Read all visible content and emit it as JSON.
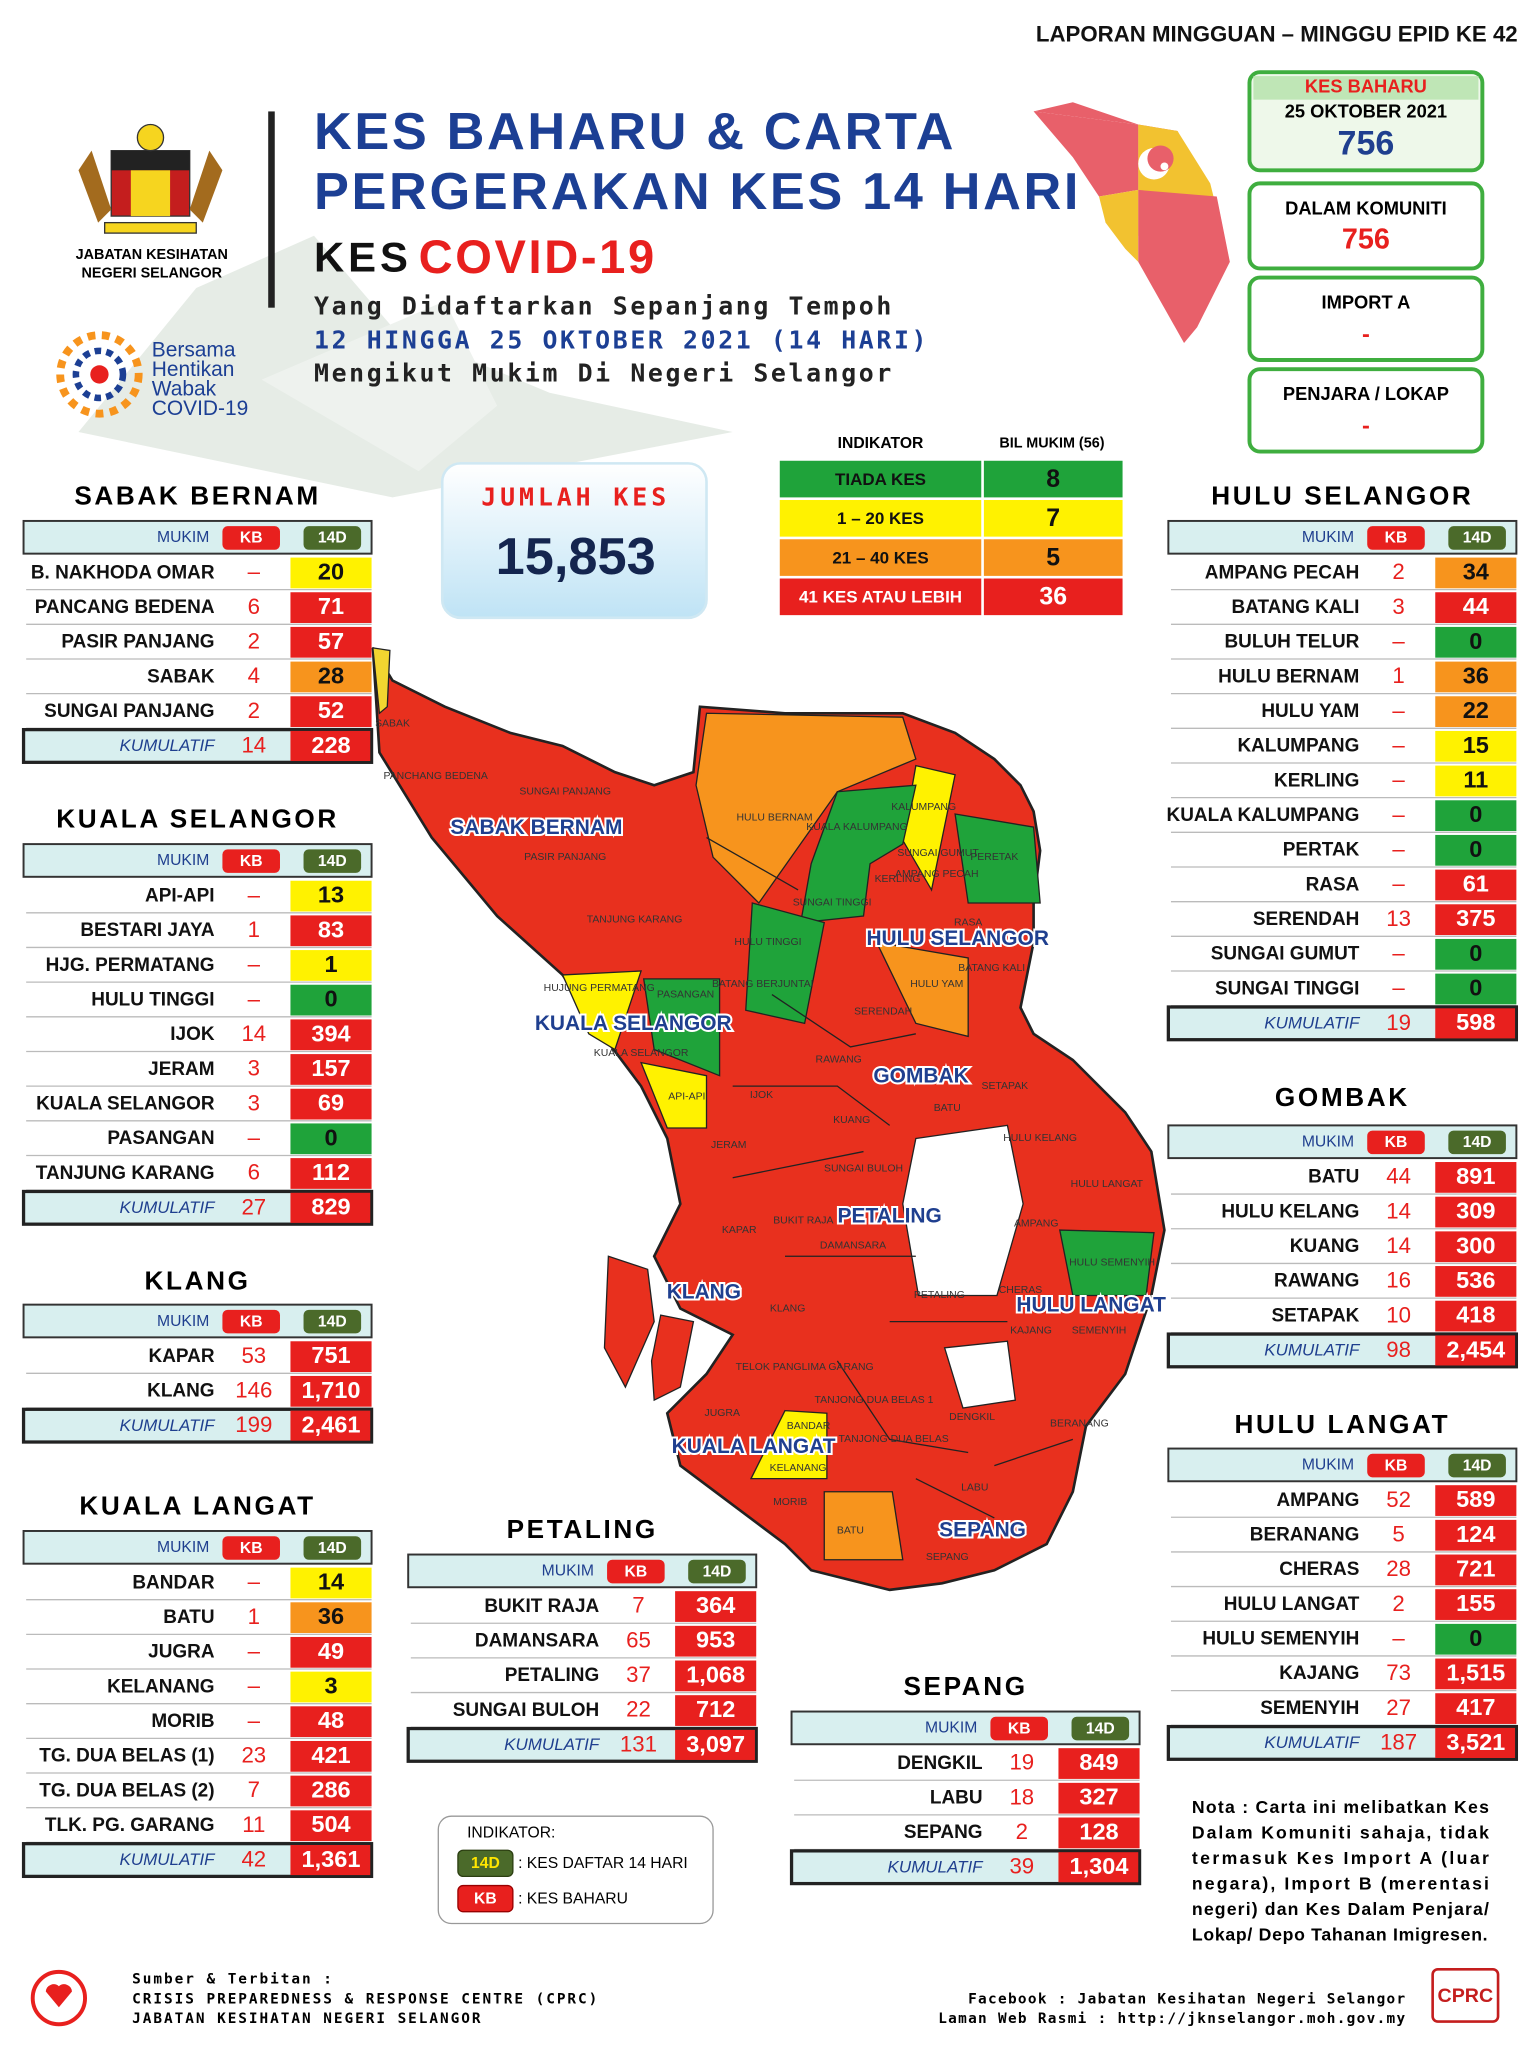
{
  "header": {
    "report": "LAPORAN MINGGUAN – MINGGU EPID KE 42",
    "agency": [
      "JABATAN KESIHATAN",
      "NEGERI SELANGOR"
    ],
    "campaign": [
      "Bersama",
      "Hentikan",
      "Wabak",
      "COVID-19"
    ],
    "title": [
      "KES BAHARU & CARTA",
      "PERGERAKAN KES 14 HARI"
    ],
    "kes": "KES",
    "covid": "COVID-19",
    "subtitle": [
      "Yang Didaftarkan Sepanjang Tempoh",
      "12 HINGGA 25 OKTOBER 2021 (14 HARI)",
      "Mengikut Mukim Di Negeri Selangor"
    ]
  },
  "summary": [
    {
      "label": "KES BAHARU",
      "date": "25 OKTOBER 2021",
      "value": "756"
    },
    {
      "label": "DALAM KOMUNITI",
      "value": "756"
    },
    {
      "label": "IMPORT A",
      "value": "-"
    },
    {
      "label": "PENJARA / LOKAP",
      "value": "-"
    }
  ],
  "total": {
    "label": "JUMLAH KES",
    "value": "15,853"
  },
  "indicator": {
    "headers": [
      "INDIKATOR",
      "BIL MUKIM (56)"
    ],
    "rows": [
      {
        "label": "TIADA KES",
        "count": "8",
        "color": "#1fa33a"
      },
      {
        "label": "1 – 20 KES",
        "count": "7",
        "color": "#fff200"
      },
      {
        "label": "21 – 40 KES",
        "count": "5",
        "color": "#f7941d"
      },
      {
        "label": "41 KES ATAU LEBIH",
        "count": "36",
        "color": "#e8201e"
      }
    ]
  },
  "columns": {
    "mukim": "MUKIM",
    "kb": "KB",
    "d14": "14D",
    "total": "KUMULATIF"
  },
  "districts": [
    {
      "name": "SABAK BERNAM",
      "rows": [
        {
          "mukim": "B. NAKHODA OMAR",
          "kb": "–",
          "d14": "20",
          "color": "#fff200"
        },
        {
          "mukim": "PANCANG BEDENA",
          "kb": "6",
          "d14": "71",
          "color": "#e8201e"
        },
        {
          "mukim": "PASIR PANJANG",
          "kb": "2",
          "d14": "57",
          "color": "#e8201e"
        },
        {
          "mukim": "SABAK",
          "kb": "4",
          "d14": "28",
          "color": "#f7941d"
        },
        {
          "mukim": "SUNGAI PANJANG",
          "kb": "2",
          "d14": "52",
          "color": "#e8201e"
        }
      ],
      "total": {
        "kb": "14",
        "d14": "228"
      }
    },
    {
      "name": "KUALA SELANGOR",
      "rows": [
        {
          "mukim": "API-API",
          "kb": "–",
          "d14": "13",
          "color": "#fff200"
        },
        {
          "mukim": "BESTARI JAYA",
          "kb": "1",
          "d14": "83",
          "color": "#e8201e"
        },
        {
          "mukim": "HJG. PERMATANG",
          "kb": "–",
          "d14": "1",
          "color": "#fff200"
        },
        {
          "mukim": "HULU TINGGI",
          "kb": "–",
          "d14": "0",
          "color": "#1fa33a"
        },
        {
          "mukim": "IJOK",
          "kb": "14",
          "d14": "394",
          "color": "#e8201e"
        },
        {
          "mukim": "JERAM",
          "kb": "3",
          "d14": "157",
          "color": "#e8201e"
        },
        {
          "mukim": "KUALA SELANGOR",
          "kb": "3",
          "d14": "69",
          "color": "#e8201e"
        },
        {
          "mukim": "PASANGAN",
          "kb": "–",
          "d14": "0",
          "color": "#1fa33a"
        },
        {
          "mukim": "TANJUNG KARANG",
          "kb": "6",
          "d14": "112",
          "color": "#e8201e"
        }
      ],
      "total": {
        "kb": "27",
        "d14": "829"
      }
    },
    {
      "name": "KLANG",
      "rows": [
        {
          "mukim": "KAPAR",
          "kb": "53",
          "d14": "751",
          "color": "#e8201e"
        },
        {
          "mukim": "KLANG",
          "kb": "146",
          "d14": "1,710",
          "color": "#e8201e"
        }
      ],
      "total": {
        "kb": "199",
        "d14": "2,461"
      }
    },
    {
      "name": "KUALA LANGAT",
      "rows": [
        {
          "mukim": "BANDAR",
          "kb": "–",
          "d14": "14",
          "color": "#fff200"
        },
        {
          "mukim": "BATU",
          "kb": "1",
          "d14": "36",
          "color": "#f7941d"
        },
        {
          "mukim": "JUGRA",
          "kb": "–",
          "d14": "49",
          "color": "#e8201e"
        },
        {
          "mukim": "KELANANG",
          "kb": "–",
          "d14": "3",
          "color": "#fff200"
        },
        {
          "mukim": "MORIB",
          "kb": "–",
          "d14": "48",
          "color": "#e8201e"
        },
        {
          "mukim": "TG. DUA BELAS (1)",
          "kb": "23",
          "d14": "421",
          "color": "#e8201e"
        },
        {
          "mukim": "TG. DUA BELAS (2)",
          "kb": "7",
          "d14": "286",
          "color": "#e8201e"
        },
        {
          "mukim": "TLK. PG. GARANG",
          "kb": "11",
          "d14": "504",
          "color": "#e8201e"
        }
      ],
      "total": {
        "kb": "42",
        "d14": "1,361"
      }
    },
    {
      "name": "PETALING",
      "rows": [
        {
          "mukim": "BUKIT RAJA",
          "kb": "7",
          "d14": "364",
          "color": "#e8201e"
        },
        {
          "mukim": "DAMANSARA",
          "kb": "65",
          "d14": "953",
          "color": "#e8201e"
        },
        {
          "mukim": "PETALING",
          "kb": "37",
          "d14": "1,068",
          "color": "#e8201e"
        },
        {
          "mukim": "SUNGAI BULOH",
          "kb": "22",
          "d14": "712",
          "color": "#e8201e"
        }
      ],
      "total": {
        "kb": "131",
        "d14": "3,097"
      }
    },
    {
      "name": "SEPANG",
      "rows": [
        {
          "mukim": "DENGKIL",
          "kb": "19",
          "d14": "849",
          "color": "#e8201e"
        },
        {
          "mukim": "LABU",
          "kb": "18",
          "d14": "327",
          "color": "#e8201e"
        },
        {
          "mukim": "SEPANG",
          "kb": "2",
          "d14": "128",
          "color": "#e8201e"
        }
      ],
      "total": {
        "kb": "39",
        "d14": "1,304"
      }
    },
    {
      "name": "HULU SELANGOR",
      "rows": [
        {
          "mukim": "AMPANG PECAH",
          "kb": "2",
          "d14": "34",
          "color": "#f7941d"
        },
        {
          "mukim": "BATANG KALI",
          "kb": "3",
          "d14": "44",
          "color": "#e8201e"
        },
        {
          "mukim": "BULUH TELUR",
          "kb": "–",
          "d14": "0",
          "color": "#1fa33a"
        },
        {
          "mukim": "HULU BERNAM",
          "kb": "1",
          "d14": "36",
          "color": "#f7941d"
        },
        {
          "mukim": "HULU YAM",
          "kb": "–",
          "d14": "22",
          "color": "#f7941d"
        },
        {
          "mukim": "KALUMPANG",
          "kb": "–",
          "d14": "15",
          "color": "#fff200"
        },
        {
          "mukim": "KERLING",
          "kb": "–",
          "d14": "11",
          "color": "#fff200"
        },
        {
          "mukim": "KUALA KALUMPANG",
          "kb": "–",
          "d14": "0",
          "color": "#1fa33a"
        },
        {
          "mukim": "PERTAK",
          "kb": "–",
          "d14": "0",
          "color": "#1fa33a"
        },
        {
          "mukim": "RASA",
          "kb": "–",
          "d14": "61",
          "color": "#e8201e"
        },
        {
          "mukim": "SERENDAH",
          "kb": "13",
          "d14": "375",
          "color": "#e8201e"
        },
        {
          "mukim": "SUNGAI GUMUT",
          "kb": "–",
          "d14": "0",
          "color": "#1fa33a"
        },
        {
          "mukim": "SUNGAI TINGGI",
          "kb": "–",
          "d14": "0",
          "color": "#1fa33a"
        }
      ],
      "total": {
        "kb": "19",
        "d14": "598"
      }
    },
    {
      "name": "GOMBAK",
      "rows": [
        {
          "mukim": "BATU",
          "kb": "44",
          "d14": "891",
          "color": "#e8201e"
        },
        {
          "mukim": "HULU KELANG",
          "kb": "14",
          "d14": "309",
          "color": "#e8201e"
        },
        {
          "mukim": "KUANG",
          "kb": "14",
          "d14": "300",
          "color": "#e8201e"
        },
        {
          "mukim": "RAWANG",
          "kb": "16",
          "d14": "536",
          "color": "#e8201e"
        },
        {
          "mukim": "SETAPAK",
          "kb": "10",
          "d14": "418",
          "color": "#e8201e"
        }
      ],
      "total": {
        "kb": "98",
        "d14": "2,454"
      }
    },
    {
      "name": "HULU LANGAT",
      "rows": [
        {
          "mukim": "AMPANG",
          "kb": "52",
          "d14": "589",
          "color": "#e8201e"
        },
        {
          "mukim": "BERANANG",
          "kb": "5",
          "d14": "124",
          "color": "#e8201e"
        },
        {
          "mukim": "CHERAS",
          "kb": "28",
          "d14": "721",
          "color": "#e8201e"
        },
        {
          "mukim": "HULU LANGAT",
          "kb": "2",
          "d14": "155",
          "color": "#e8201e"
        },
        {
          "mukim": "HULU SEMENYIH",
          "kb": "–",
          "d14": "0",
          "color": "#1fa33a"
        },
        {
          "mukim": "KAJANG",
          "kb": "73",
          "d14": "1,515",
          "color": "#e8201e"
        },
        {
          "mukim": "SEMENYIH",
          "kb": "27",
          "d14": "417",
          "color": "#e8201e"
        }
      ],
      "total": {
        "kb": "187",
        "d14": "3,521"
      }
    }
  ],
  "map": {
    "districts": [
      "SABAK BERNAM",
      "HULU SELANGOR",
      "KUALA SELANGOR",
      "GOMBAK",
      "PETALING",
      "KLANG",
      "HULU LANGAT",
      "KUALA LANGAT",
      "SEPANG"
    ],
    "mukims": [
      "SABAK",
      "PANCHANG BEDENA",
      "SUNGAI PANJANG",
      "PASIR PANJANG",
      "TANJUNG KARANG",
      "HULU BERNAM",
      "PERETAK",
      "KERLING",
      "SUNGAI TINGGI",
      "HULU TINGGI",
      "PASANGAN",
      "HUJUNG PERMATANG",
      "BATANG BERJUNTAI",
      "RASA",
      "BATANG KALI",
      "HULU YAM",
      "SERENDAH",
      "RAWANG",
      "IJOK",
      "API-API",
      "KUALA SELANGOR",
      "JERAM",
      "KUANG",
      "BATU",
      "SETAPAK",
      "HULU KELANG",
      "HULU LANGAT",
      "SUNGAI BULOH",
      "KAPAR",
      "BUKIT RAJA",
      "DAMANSARA",
      "KLANG",
      "PETALING",
      "CHERAS",
      "HULU SEMENYIH",
      "KAJANG",
      "SEMENYIH",
      "TELOK PANGLIMA GARANG",
      "TANJONG DUA BELAS 1",
      "JUGRA",
      "BANDAR",
      "TANJONG DUA BELAS",
      "BERANANG",
      "DENGKIL",
      "KELANANG",
      "MORIB",
      "LABU",
      "BATU",
      "SEPANG",
      "KALUMPANG",
      "KUALA KALUMPANG",
      "SUNGAI GUMUT",
      "AMPANG PECAH",
      "AMPANG"
    ]
  },
  "legend": {
    "title": "INDIKATOR:",
    "items": [
      {
        "code": "14D",
        "text": ": KES DAFTAR 14 HARI"
      },
      {
        "code": "KB",
        "text": ": KES BAHARU"
      }
    ]
  },
  "note": [
    "Nota : Carta ini melibatkan Kes",
    "Dalam Komuniti sahaja, tidak",
    "termasuk Kes Import A (luar",
    "negara), Import B (merentasi",
    "negeri) dan Kes Dalam Penjara/",
    "Lokap/ Depo Tahanan Imigresen."
  ],
  "footer": {
    "source": [
      "Sumber & Terbitan :",
      "CRISIS PREPAREDNESS & RESPONSE CENTRE (CPRC)",
      "JABATAN KESIHATAN NEGERI SELANGOR"
    ],
    "links": [
      "Facebook : Jabatan Kesihatan Negeri Selangor",
      "Laman Web Rasmi : http://jknselangor.moh.gov.my"
    ],
    "logo": "CPRC"
  }
}
